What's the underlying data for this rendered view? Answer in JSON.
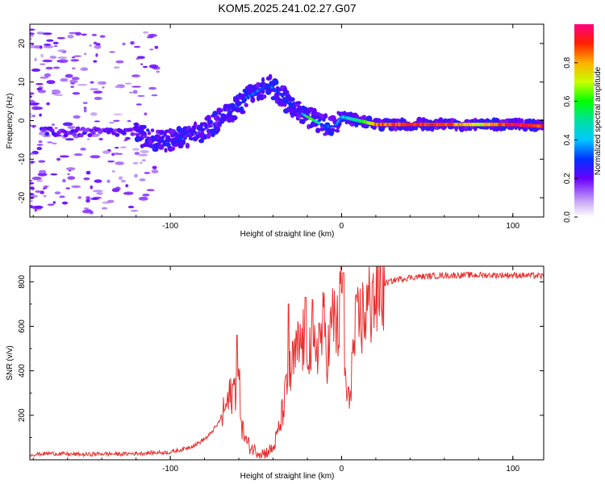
{
  "figure_title": "KOM5.2025.241.02.27.G07",
  "chart_data": [
    {
      "type": "heatmap",
      "xlabel": "Height of straight line (km)",
      "ylabel": "Frequency (Hz)",
      "xlim": [
        -182,
        118
      ],
      "ylim": [
        -25,
        25
      ],
      "xticks": [
        -100,
        0,
        100
      ],
      "yticks": [
        -20,
        -10,
        0,
        10,
        20
      ],
      "colorbar": {
        "label": "Normalized spectral amplitude",
        "range": [
          0,
          1
        ],
        "ticks": [
          "0.0",
          "0.2",
          "0.4",
          "0.6",
          "0.8"
        ]
      },
      "ridge_frequency": {
        "x": [
          -120,
          -105,
          -95,
          -85,
          -75,
          -65,
          -55,
          -48,
          -42,
          -36,
          -30,
          -24,
          -18,
          -12,
          -8,
          -4,
          0,
          10,
          20,
          40,
          60,
          80,
          100,
          118
        ],
        "y": [
          -3.5,
          -5.5,
          -4.5,
          -3.5,
          -1,
          2,
          6,
          8,
          9,
          7,
          4,
          2,
          0.5,
          -1,
          -1.5,
          -1.5,
          1,
          0,
          -1,
          -1,
          -1,
          -1,
          -1,
          -1.5
        ]
      },
      "ridge_amplitude": [
        0.15,
        0.25,
        0.25,
        0.2,
        0.2,
        0.25,
        0.3,
        0.35,
        0.3,
        0.3,
        0.25,
        0.25,
        0.7,
        0.35,
        0.3,
        0.3,
        0.4,
        0.5,
        0.85,
        0.9,
        0.9,
        0.7,
        0.95,
        0.9
      ]
    },
    {
      "type": "line",
      "xlabel": "Height of straight line (km)",
      "ylabel": "SNR (v/v)",
      "xlim": [
        -182,
        118
      ],
      "ylim": [
        0,
        870
      ],
      "xticks": [
        -100,
        0,
        100
      ],
      "yticks": [
        200,
        400,
        600,
        800
      ],
      "series": [
        {
          "name": "SNR",
          "color": "#e8302e",
          "x": [
            -182,
            -170,
            -160,
            -150,
            -140,
            -130,
            -120,
            -110,
            -100,
            -92,
            -85,
            -78,
            -72,
            -68,
            -64,
            -60,
            -58,
            -55,
            -50,
            -45,
            -40,
            -36,
            -33,
            -30,
            -27,
            -25,
            -22,
            -20,
            -17,
            -15,
            -12,
            -10,
            -8,
            -6,
            -4,
            -2,
            0,
            1,
            2,
            4,
            6,
            8,
            10,
            12,
            14,
            16,
            18,
            20,
            22,
            25,
            28,
            32,
            36,
            40,
            50,
            60,
            70,
            80,
            90,
            100,
            110,
            118
          ],
          "y": [
            20,
            25,
            22,
            20,
            24,
            22,
            25,
            28,
            30,
            45,
            65,
            100,
            160,
            230,
            300,
            360,
            140,
            70,
            40,
            30,
            50,
            150,
            280,
            380,
            460,
            500,
            540,
            560,
            430,
            520,
            560,
            600,
            470,
            600,
            650,
            560,
            800,
            520,
            360,
            240,
            420,
            560,
            620,
            640,
            670,
            690,
            710,
            730,
            760,
            790,
            800,
            810,
            815,
            820,
            825,
            828,
            830,
            830,
            830,
            830,
            828,
            825
          ]
        }
      ],
      "spikes": [
        {
          "x": -61,
          "y": 560
        },
        {
          "x": -31,
          "y": 700
        },
        {
          "x": -21,
          "y": 730
        },
        {
          "x": -17,
          "y": 720
        },
        {
          "x": 1,
          "y": 840
        },
        {
          "x": 18,
          "y": 800
        }
      ]
    }
  ]
}
